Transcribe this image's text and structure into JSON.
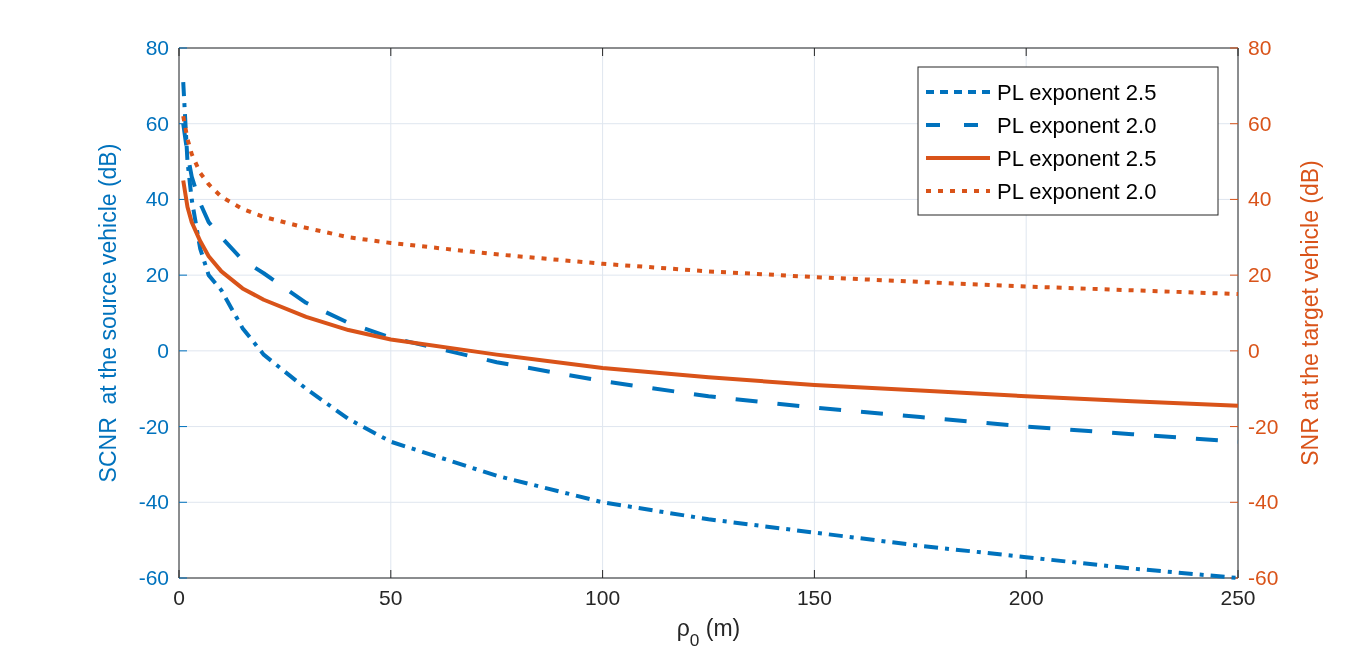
{
  "chart_data": {
    "type": "line",
    "xlabel": "ρ$_{0}$ (m)",
    "ylabel": "SCNR  at the source vehicle (dB)",
    "y2label": "SNR at the target vehicle (dB)",
    "xlim": [
      0,
      250
    ],
    "xticks": [
      0,
      50,
      100,
      150,
      200,
      250
    ],
    "ylim": [
      -60,
      80
    ],
    "yticks": [
      -60,
      -40,
      -20,
      0,
      20,
      40,
      60,
      80
    ],
    "y2lim": [
      -60,
      80
    ],
    "y2ticks": [
      -60,
      -40,
      -20,
      0,
      20,
      40,
      60,
      80
    ],
    "grid": true,
    "legend": "top right",
    "marker": "none",
    "x": [
      1,
      2,
      3,
      5,
      7,
      10,
      15,
      20,
      30,
      40,
      50,
      75,
      100,
      125,
      150,
      175,
      200,
      225,
      250
    ],
    "series": [
      {
        "name": "PL exponent 2.5",
        "color": "#0072bd",
        "line_style": "dashed",
        "values": [
          71,
          50,
          40,
          27,
          20,
          16,
          6,
          -1,
          -10,
          -18,
          -24,
          -33,
          -40,
          -44.5,
          -48,
          -51.5,
          -54.5,
          -57.5,
          -60
        ]
      },
      {
        "name": "PL exponent 2.0",
        "color": "#0072bd",
        "line_style": "dashed",
        "values": [
          60,
          52,
          46,
          39,
          34,
          30,
          24,
          20.5,
          12.7,
          7.4,
          3.5,
          -3,
          -8,
          -12,
          -15,
          -17.5,
          -20,
          -22,
          -24
        ]
      },
      {
        "name": "PL exponent 2.5",
        "color": "#d95319",
        "line_style": "solid",
        "axis": "y2",
        "values": [
          45,
          38,
          34,
          29,
          25,
          21,
          16.5,
          13.5,
          9,
          5.5,
          3,
          -1,
          -4.5,
          -7,
          -9,
          -10.5,
          -12,
          -13.3,
          -14.5
        ]
      },
      {
        "name": "PL exponent 2.0",
        "color": "#d95319",
        "line_style": "dotted",
        "axis": "y2",
        "values": [
          62,
          56,
          52,
          47,
          44,
          40.7,
          37.5,
          35.4,
          32.5,
          30,
          28.5,
          25.5,
          23,
          21,
          19.5,
          18.2,
          17,
          16,
          15
        ]
      }
    ]
  }
}
